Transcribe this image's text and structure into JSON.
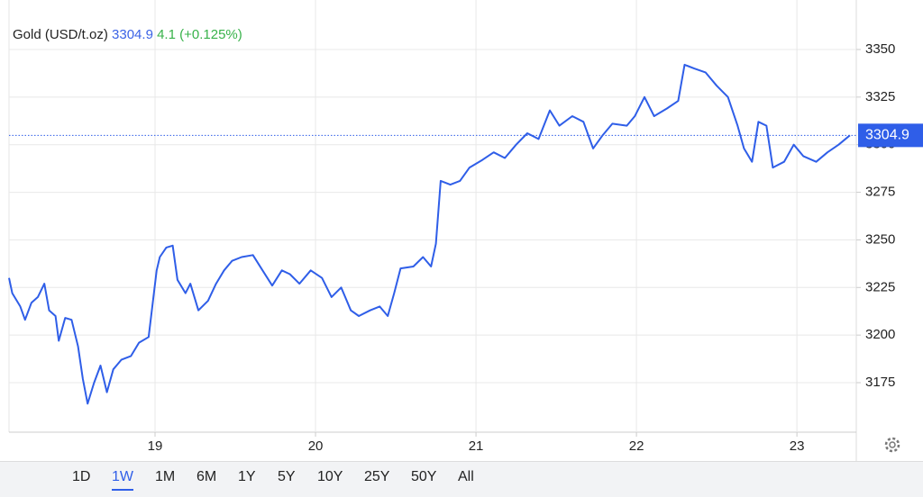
{
  "header": {
    "title": "Gold (USD/t.oz)",
    "price": 3304.9,
    "change": 4.1,
    "change_pct": "(+0.125%)"
  },
  "ranges": [
    "1D",
    "1W",
    "1M",
    "6M",
    "1Y",
    "5Y",
    "10Y",
    "25Y",
    "50Y",
    "All"
  ],
  "selected_range": 1,
  "chart_data": {
    "type": "line",
    "color": "#2f5ee8",
    "grid": true,
    "xlim": [
      18.09,
      23.37
    ],
    "xticks": [
      19,
      20,
      21,
      22,
      23
    ],
    "ylim": [
      3149,
      3376
    ],
    "yticks": [
      3175,
      3200,
      3225,
      3250,
      3275,
      3300,
      3325,
      3350
    ],
    "x": [
      18.09,
      18.11,
      18.16,
      18.19,
      18.23,
      18.27,
      18.31,
      18.34,
      18.38,
      18.4,
      18.44,
      18.48,
      18.52,
      18.55,
      18.58,
      18.62,
      18.66,
      18.7,
      18.74,
      18.79,
      18.85,
      18.9,
      18.96,
      19.01,
      19.03,
      19.07,
      19.11,
      19.14,
      19.19,
      19.22,
      19.27,
      19.33,
      19.38,
      19.43,
      19.48,
      19.54,
      19.61,
      19.67,
      19.73,
      19.79,
      19.84,
      19.9,
      19.97,
      20.04,
      20.1,
      20.16,
      20.22,
      20.27,
      20.34,
      20.4,
      20.45,
      20.49,
      20.53,
      20.61,
      20.67,
      20.72,
      20.75,
      20.78,
      20.84,
      20.9,
      20.96,
      21.04,
      21.11,
      21.18,
      21.25,
      21.32,
      21.39,
      21.46,
      21.52,
      21.6,
      21.67,
      21.73,
      21.79,
      21.85,
      21.94,
      21.99,
      22.05,
      22.11,
      22.19,
      22.26,
      22.3,
      22.36,
      22.43,
      22.5,
      22.57,
      22.63,
      22.67,
      22.72,
      22.76,
      22.81,
      22.85,
      22.92,
      22.98,
      23.04,
      23.12,
      23.19,
      23.26,
      23.33
    ],
    "series": [
      {
        "name": "Gold",
        "values": [
          3230,
          3222,
          3215,
          3208,
          3217,
          3220,
          3227,
          3213,
          3210,
          3197,
          3209,
          3208,
          3194,
          3177,
          3164,
          3175,
          3184,
          3170,
          3182,
          3187,
          3189,
          3196,
          3199,
          3234,
          3241,
          3246,
          3247,
          3229,
          3222,
          3227,
          3213,
          3218,
          3227,
          3234,
          3239,
          3241,
          3242,
          3234,
          3226,
          3234,
          3232,
          3227,
          3234,
          3230,
          3220,
          3225,
          3213,
          3210,
          3213,
          3215,
          3210,
          3222,
          3235,
          3236,
          3241,
          3236,
          3248,
          3281,
          3279,
          3281,
          3288,
          3292,
          3296,
          3293,
          3300,
          3306,
          3303,
          3318,
          3310,
          3315,
          3312,
          3298,
          3305,
          3311,
          3310,
          3315,
          3325,
          3315,
          3319,
          3323,
          3342,
          3340,
          3338,
          3331,
          3325,
          3310,
          3298,
          3291,
          3312,
          3310,
          3288,
          3291,
          3300,
          3294,
          3291,
          3296,
          3300,
          3304.9
        ]
      }
    ]
  }
}
